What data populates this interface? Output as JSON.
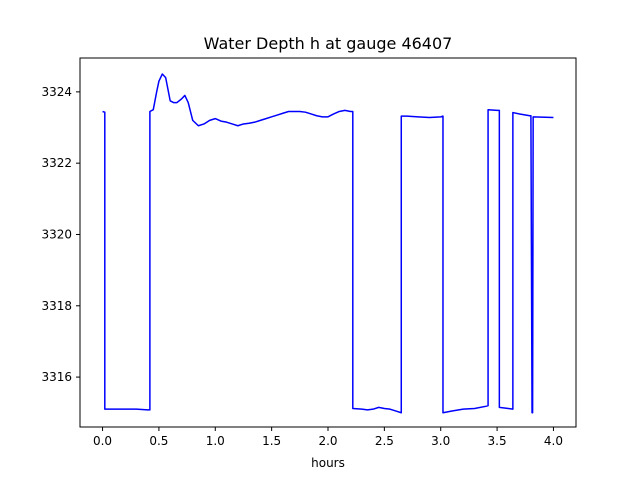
{
  "chart_data": {
    "type": "line",
    "title": "Water Depth h at gauge 46407",
    "xlabel": "hours",
    "ylabel": "",
    "xlim": [
      -0.2,
      4.2
    ],
    "ylim": [
      3314.6,
      3324.95
    ],
    "xticks": [
      0.0,
      0.5,
      1.0,
      1.5,
      2.0,
      2.5,
      3.0,
      3.5,
      4.0
    ],
    "xtick_labels": [
      "0.0",
      "0.5",
      "1.0",
      "1.5",
      "2.0",
      "2.5",
      "3.0",
      "3.5",
      "4.0"
    ],
    "yticks": [
      3316,
      3318,
      3320,
      3322,
      3324
    ],
    "ytick_labels": [
      "3316",
      "3318",
      "3320",
      "3322",
      "3324"
    ],
    "grid": false,
    "series": [
      {
        "color": "#0000ff",
        "x": [
          0.0,
          0.02,
          0.02,
          0.1,
          0.2,
          0.3,
          0.4,
          0.42,
          0.42,
          0.45,
          0.48,
          0.5,
          0.53,
          0.56,
          0.6,
          0.63,
          0.66,
          0.7,
          0.73,
          0.76,
          0.8,
          0.85,
          0.9,
          0.95,
          1.0,
          1.05,
          1.1,
          1.15,
          1.2,
          1.25,
          1.3,
          1.35,
          1.4,
          1.45,
          1.5,
          1.55,
          1.6,
          1.65,
          1.7,
          1.75,
          1.8,
          1.85,
          1.9,
          1.95,
          2.0,
          2.05,
          2.1,
          2.15,
          2.2,
          2.22,
          2.22,
          2.3,
          2.35,
          2.4,
          2.45,
          2.5,
          2.55,
          2.6,
          2.65,
          2.65,
          2.7,
          2.8,
          2.9,
          3.0,
          3.02,
          3.02,
          3.1,
          3.2,
          3.3,
          3.4,
          3.42,
          3.42,
          3.5,
          3.52,
          3.52,
          3.6,
          3.64,
          3.64,
          3.7,
          3.79,
          3.8,
          3.81,
          3.815,
          3.82,
          4.0
        ],
        "y": [
          3323.45,
          3323.43,
          3315.1,
          3315.1,
          3315.1,
          3315.1,
          3315.08,
          3315.08,
          3323.45,
          3323.5,
          3324.0,
          3324.3,
          3324.5,
          3324.4,
          3323.75,
          3323.7,
          3323.7,
          3323.8,
          3323.9,
          3323.7,
          3323.2,
          3323.05,
          3323.1,
          3323.2,
          3323.25,
          3323.18,
          3323.15,
          3323.1,
          3323.05,
          3323.1,
          3323.12,
          3323.15,
          3323.2,
          3323.25,
          3323.3,
          3323.35,
          3323.4,
          3323.45,
          3323.45,
          3323.45,
          3323.43,
          3323.38,
          3323.33,
          3323.3,
          3323.3,
          3323.38,
          3323.45,
          3323.48,
          3323.45,
          3323.45,
          3315.12,
          3315.1,
          3315.08,
          3315.1,
          3315.15,
          3315.12,
          3315.1,
          3315.05,
          3315.0,
          3323.32,
          3323.32,
          3323.3,
          3323.28,
          3323.3,
          3323.32,
          3315.0,
          3315.05,
          3315.1,
          3315.12,
          3315.18,
          3315.2,
          3323.5,
          3323.48,
          3323.48,
          3315.15,
          3315.12,
          3315.1,
          3323.42,
          3323.38,
          3323.33,
          3323.33,
          3315.0,
          3315.0,
          3323.3,
          3323.28
        ]
      }
    ]
  }
}
